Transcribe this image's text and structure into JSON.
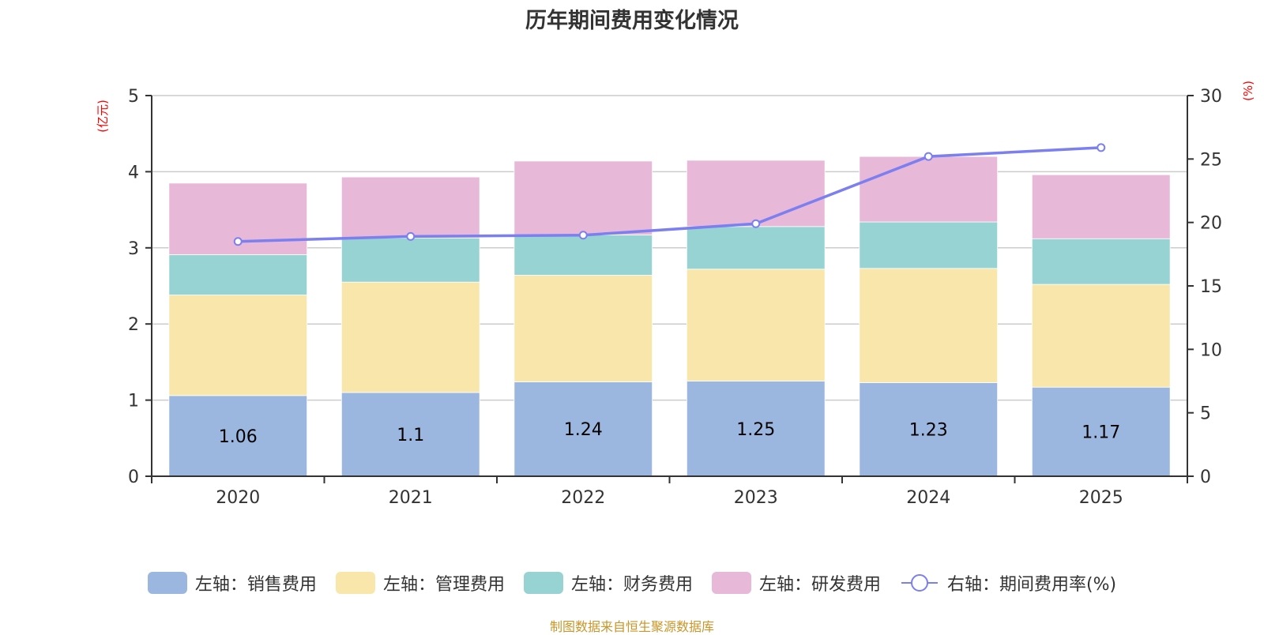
{
  "title": "历年期间费用变化情况",
  "source": "制图数据来自恒生聚源数据库",
  "chart_data": {
    "type": "bar",
    "stacked": true,
    "title": "历年期间费用变化情况",
    "categories": [
      "2020",
      "2021",
      "2022",
      "2023",
      "2024",
      "2025"
    ],
    "left_axis": {
      "label": "(亿元)",
      "range": [
        0,
        5
      ],
      "ticks": [
        0,
        1,
        2,
        3,
        4,
        5
      ],
      "color": "#ff0000"
    },
    "right_axis": {
      "label": "(%)",
      "range": [
        0,
        30
      ],
      "ticks": [
        0,
        5,
        10,
        15,
        20,
        25,
        30
      ],
      "color": "#ff0000"
    },
    "grid": true,
    "legend_position": "bottom",
    "series": [
      {
        "name": "左轴：销售费用",
        "type": "bar",
        "axis": "left",
        "color": "#9bb7e0",
        "values": [
          1.06,
          1.1,
          1.24,
          1.25,
          1.23,
          1.17
        ],
        "show_labels": true,
        "labels": [
          "1.06",
          "1.1",
          "1.24",
          "1.25",
          "1.23",
          "1.17"
        ]
      },
      {
        "name": "左轴：管理费用",
        "type": "bar",
        "axis": "left",
        "color": "#f8e6aa",
        "values": [
          1.32,
          1.45,
          1.4,
          1.47,
          1.5,
          1.35
        ]
      },
      {
        "name": "左轴：财务费用",
        "type": "bar",
        "axis": "left",
        "color": "#97d3d3",
        "values": [
          0.53,
          0.58,
          0.53,
          0.56,
          0.61,
          0.6
        ]
      },
      {
        "name": "左轴：研发费用",
        "type": "bar",
        "axis": "left",
        "color": "#e7b8d7",
        "values": [
          0.94,
          0.8,
          0.97,
          0.87,
          0.86,
          0.84
        ]
      },
      {
        "name": "右轴：期间费用率(%)",
        "type": "line",
        "axis": "right",
        "color": "#7b7ff0",
        "values": [
          18.5,
          18.9,
          19.0,
          19.9,
          25.2,
          25.9
        ]
      }
    ]
  }
}
